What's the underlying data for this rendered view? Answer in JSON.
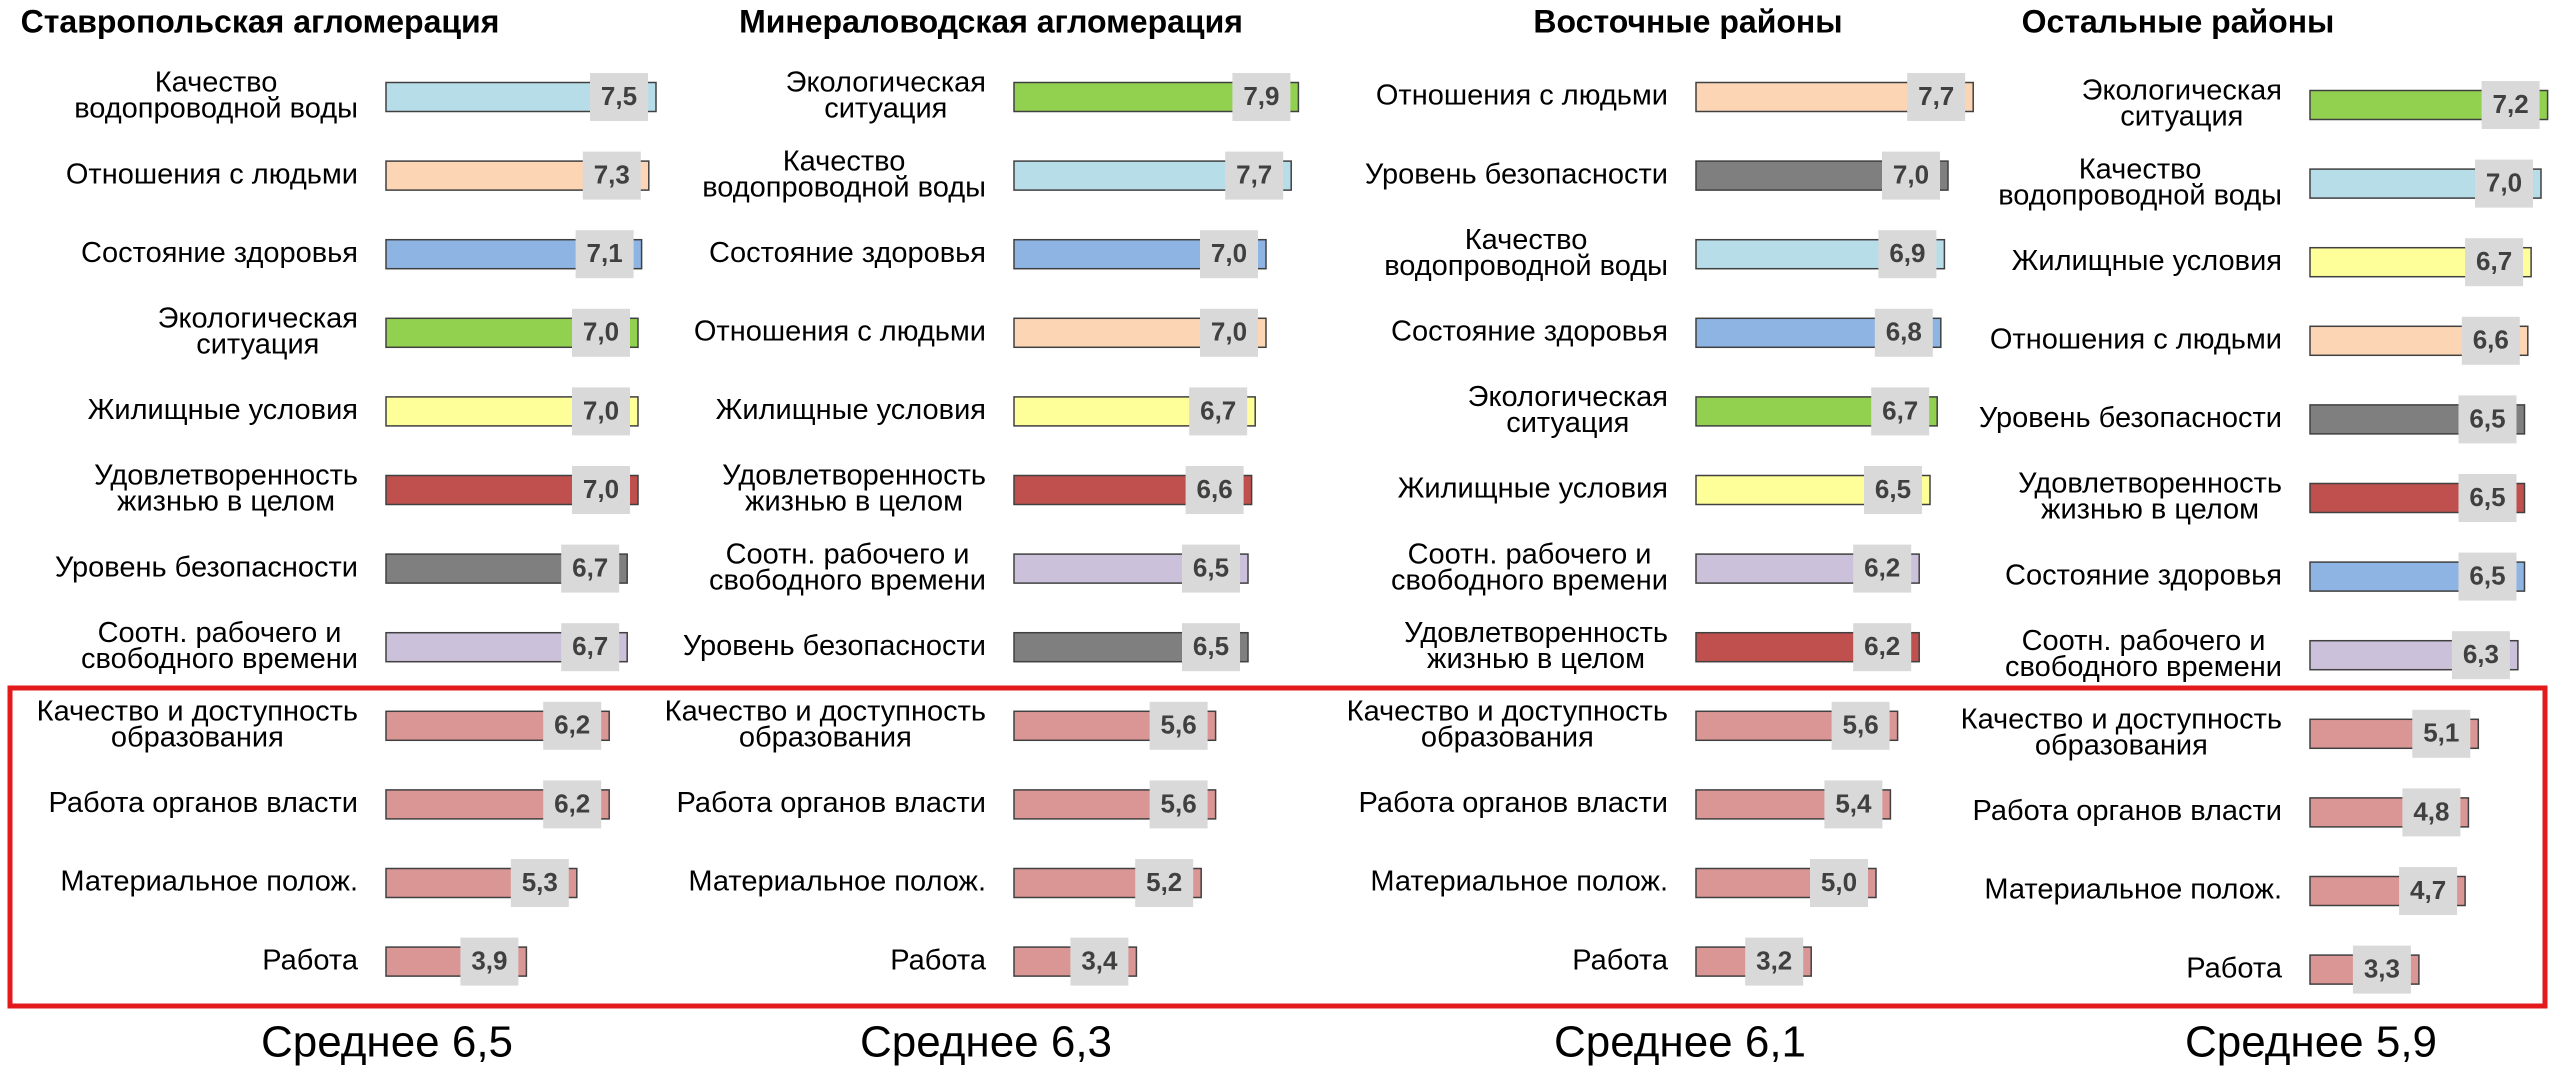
{
  "chart_data": [
    {
      "type": "bar",
      "title": "Ставропольская агломерация",
      "annotation": "Среднее 6,5",
      "categories": [
        [
          "Качество",
          "водопроводной воды"
        ],
        [
          "Отношения с людьми"
        ],
        [
          "Состояние здоровья"
        ],
        [
          "Экологическая",
          "ситуация"
        ],
        [
          "Жилищные условия"
        ],
        [
          "Удовлетворенность",
          "жизнью в целом"
        ],
        [
          "Уровень безопасности"
        ],
        [
          "Соотн. рабочего и",
          "свободного времени"
        ],
        [
          "Качество и доступность",
          "образования"
        ],
        [
          "Работа органов власти"
        ],
        [
          "Материальное полож."
        ],
        [
          "Работа"
        ]
      ],
      "values": [
        7.5,
        7.3,
        7.1,
        7.0,
        7.0,
        7.0,
        6.7,
        6.7,
        6.2,
        6.2,
        5.3,
        3.9
      ],
      "value_labels": [
        "7,5",
        "7,3",
        "7,1",
        "7,0",
        "7,0",
        "7,0",
        "6,7",
        "6,7",
        "6,2",
        "6,2",
        "5,3",
        "3,9"
      ],
      "colors": [
        "#b7dde8",
        "#fcd5b5",
        "#8eb4e3",
        "#92d050",
        "#ffff99",
        "#c0504d",
        "#7f7f7f",
        "#ccc1da",
        "#d99694",
        "#d99694",
        "#d99694",
        "#d99694"
      ]
    },
    {
      "type": "bar",
      "title": "Минераловодская агломерация",
      "annotation": "Среднее 6,3",
      "categories": [
        [
          "Экологическая",
          "ситуация"
        ],
        [
          "Качество",
          "водопроводной воды"
        ],
        [
          "Состояние здоровья"
        ],
        [
          "Отношения с людьми"
        ],
        [
          "Жилищные условия"
        ],
        [
          "Удовлетворенность",
          "жизнью в целом"
        ],
        [
          "Соотн. рабочего и",
          "свободного времени"
        ],
        [
          "Уровень безопасности"
        ],
        [
          "Качество и доступность",
          "образования"
        ],
        [
          "Работа органов власти"
        ],
        [
          "Материальное полож."
        ],
        [
          "Работа"
        ]
      ],
      "values": [
        7.9,
        7.7,
        7.0,
        7.0,
        6.7,
        6.6,
        6.5,
        6.5,
        5.6,
        5.6,
        5.2,
        3.4
      ],
      "value_labels": [
        "7,9",
        "7,7",
        "7,0",
        "7,0",
        "6,7",
        "6,6",
        "6,5",
        "6,5",
        "5,6",
        "5,6",
        "5,2",
        "3,4"
      ],
      "colors": [
        "#92d050",
        "#b7dde8",
        "#8eb4e3",
        "#fcd5b5",
        "#ffff99",
        "#c0504d",
        "#ccc1da",
        "#7f7f7f",
        "#d99694",
        "#d99694",
        "#d99694",
        "#d99694"
      ]
    },
    {
      "type": "bar",
      "title": "Восточные районы",
      "annotation": "Среднее 6,1",
      "categories": [
        [
          "Отношения с людьми"
        ],
        [
          "Уровень безопасности"
        ],
        [
          "Качество",
          "водопроводной воды"
        ],
        [
          "Состояние здоровья"
        ],
        [
          "Экологическая",
          "ситуация"
        ],
        [
          "Жилищные условия"
        ],
        [
          "Соотн. рабочего и",
          "свободного времени"
        ],
        [
          "Удовлетворенность",
          "жизнью в целом"
        ],
        [
          "Качество и доступность",
          "образования"
        ],
        [
          "Работа органов власти"
        ],
        [
          "Материальное полож."
        ],
        [
          "Работа"
        ]
      ],
      "values": [
        7.7,
        7.0,
        6.9,
        6.8,
        6.7,
        6.5,
        6.2,
        6.2,
        5.6,
        5.4,
        5.0,
        3.2
      ],
      "value_labels": [
        "7,7",
        "7,0",
        "6,9",
        "6,8",
        "6,7",
        "6,5",
        "6,2",
        "6,2",
        "5,6",
        "5,4",
        "5,0",
        "3,2"
      ],
      "colors": [
        "#fcd5b5",
        "#7f7f7f",
        "#b7dde8",
        "#8eb4e3",
        "#92d050",
        "#ffff99",
        "#ccc1da",
        "#c0504d",
        "#d99694",
        "#d99694",
        "#d99694",
        "#d99694"
      ]
    },
    {
      "type": "bar",
      "title": "Остальные районы",
      "annotation": "Среднее 5,9",
      "categories": [
        [
          "Экологическая",
          "ситуация"
        ],
        [
          "Качество",
          "водопроводной воды"
        ],
        [
          "Жилищные условия"
        ],
        [
          "Отношения с людьми"
        ],
        [
          "Уровень безопасности"
        ],
        [
          "Удовлетворенность",
          "жизнью в целом"
        ],
        [
          "Состояние здоровья"
        ],
        [
          "Соотн. рабочего и",
          "свободного времени"
        ],
        [
          "Качество и доступность",
          "образования"
        ],
        [
          "Работа органов власти"
        ],
        [
          "Материальное полож."
        ],
        [
          "Работа"
        ]
      ],
      "values": [
        7.2,
        7.0,
        6.7,
        6.6,
        6.5,
        6.5,
        6.5,
        6.3,
        5.1,
        4.8,
        4.7,
        3.3
      ],
      "value_labels": [
        "7,2",
        "7,0",
        "6,7",
        "6,6",
        "6,5",
        "6,5",
        "6,5",
        "6,3",
        "5,1",
        "4,8",
        "4,7",
        "3,3"
      ],
      "colors": [
        "#92d050",
        "#b7dde8",
        "#ffff99",
        "#fcd5b5",
        "#7f7f7f",
        "#c0504d",
        "#8eb4e3",
        "#ccc1da",
        "#d99694",
        "#d99694",
        "#d99694",
        "#d99694"
      ]
    }
  ]
}
